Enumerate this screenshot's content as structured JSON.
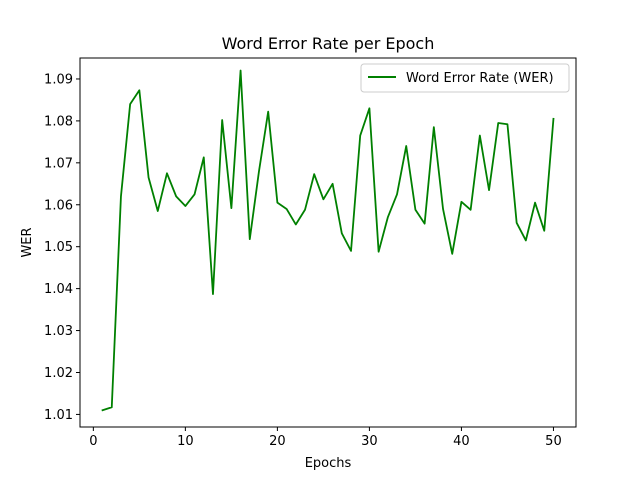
{
  "chart_data": {
    "type": "line",
    "title": "Word Error Rate per Epoch",
    "xlabel": "Epochs",
    "ylabel": "WER",
    "xlim": [
      -1.45,
      52.45
    ],
    "ylim": [
      1.007,
      1.095
    ],
    "x_ticks": [
      0,
      10,
      20,
      30,
      40,
      50
    ],
    "y_ticks": [
      1.01,
      1.02,
      1.03,
      1.04,
      1.05,
      1.06,
      1.07,
      1.08,
      1.09
    ],
    "legend_position": "top-right",
    "grid": false,
    "series": [
      {
        "name": "Word Error Rate (WER)",
        "color": "#008000",
        "x": [
          1,
          2,
          3,
          4,
          5,
          6,
          7,
          8,
          9,
          10,
          11,
          12,
          13,
          14,
          15,
          16,
          17,
          18,
          19,
          20,
          21,
          22,
          23,
          24,
          25,
          26,
          27,
          28,
          29,
          30,
          31,
          32,
          33,
          34,
          35,
          36,
          37,
          38,
          39,
          40,
          41,
          42,
          43,
          44,
          45,
          46,
          47,
          48,
          49,
          50
        ],
        "values": [
          1.011,
          1.0117,
          1.062,
          1.084,
          1.0873,
          1.0665,
          1.0585,
          1.0675,
          1.062,
          1.0597,
          1.0625,
          1.0713,
          1.0387,
          1.0802,
          1.0592,
          1.092,
          1.0518,
          1.068,
          1.0822,
          1.0605,
          1.059,
          1.0553,
          1.0588,
          1.0673,
          1.0613,
          1.065,
          1.0532,
          1.049,
          1.0765,
          1.083,
          1.0488,
          1.057,
          1.0625,
          1.074,
          1.0588,
          1.0555,
          1.0785,
          1.059,
          1.0483,
          1.0607,
          1.0588,
          1.0765,
          1.0635,
          1.0795,
          1.0792,
          1.0557,
          1.0515,
          1.0605,
          1.0538,
          1.0805
        ]
      }
    ]
  }
}
